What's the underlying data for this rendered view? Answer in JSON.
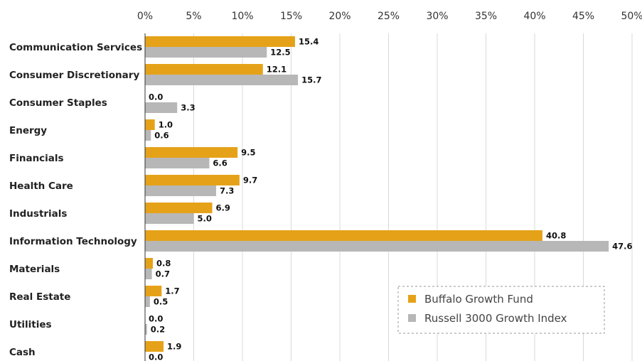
{
  "chart_data": {
    "type": "bar",
    "orientation": "horizontal",
    "categories": [
      "Communication Services",
      "Consumer Discretionary",
      "Consumer Staples",
      "Energy",
      "Financials",
      "Health Care",
      "Industrials",
      "Information Technology",
      "Materials",
      "Real Estate",
      "Utilities",
      "Cash"
    ],
    "series": [
      {
        "name": "Buffalo Growth Fund",
        "color": "#E5A219",
        "values": [
          15.4,
          12.1,
          0.0,
          1.0,
          9.5,
          9.7,
          6.9,
          40.8,
          0.8,
          1.7,
          0.0,
          1.9
        ]
      },
      {
        "name": "Russell 3000 Growth Index",
        "color": "#B7B7B7",
        "values": [
          12.5,
          15.7,
          3.3,
          0.6,
          6.6,
          7.3,
          5.0,
          47.6,
          0.7,
          0.5,
          0.2,
          0.0
        ]
      }
    ],
    "xlim": [
      0,
      50
    ],
    "xticks": [
      "0%",
      "5%",
      "10%",
      "15%",
      "20%",
      "25%",
      "30%",
      "35%",
      "40%",
      "45%",
      "50%"
    ],
    "xaxis_position": "top",
    "grid": true,
    "legend_position": "bottom-right"
  }
}
